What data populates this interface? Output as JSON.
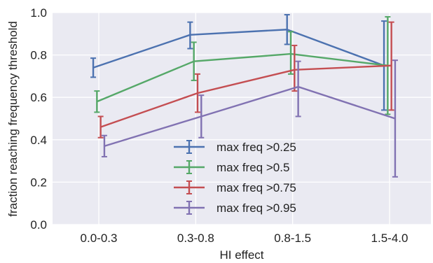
{
  "chart_data": {
    "type": "line",
    "title": "",
    "xlabel": "HI effect",
    "ylabel": "fraction reaching frequency threshold",
    "categories": [
      "0.0-0.3",
      "0.3-0.8",
      "0.8-1.5",
      "1.5-4.0"
    ],
    "ylim": [
      0.0,
      1.0
    ],
    "yticks": [
      "0.0",
      "0.2",
      "0.4",
      "0.6",
      "0.8",
      "1.0"
    ],
    "grid": true,
    "legend_position": "lower-center",
    "series": [
      {
        "name": "max freq >0.25",
        "color": "#4c72b0",
        "values": [
          0.74,
          0.895,
          0.92,
          0.75
        ],
        "err_low": [
          0.695,
          0.83,
          0.85,
          0.54
        ],
        "err_high": [
          0.785,
          0.955,
          0.99,
          0.96
        ]
      },
      {
        "name": "max freq >0.5",
        "color": "#55a868",
        "values": [
          0.58,
          0.77,
          0.805,
          0.75
        ],
        "err_low": [
          0.53,
          0.68,
          0.71,
          0.52
        ],
        "err_high": [
          0.63,
          0.86,
          0.91,
          0.98
        ]
      },
      {
        "name": "max freq >0.75",
        "color": "#c44e52",
        "values": [
          0.46,
          0.62,
          0.73,
          0.75
        ],
        "err_low": [
          0.41,
          0.53,
          0.63,
          0.54
        ],
        "err_high": [
          0.51,
          0.71,
          0.845,
          0.955
        ]
      },
      {
        "name": "max freq >0.95",
        "color": "#8172b2",
        "values": [
          0.37,
          0.51,
          0.65,
          0.5
        ],
        "err_low": [
          0.32,
          0.41,
          0.51,
          0.225
        ],
        "err_high": [
          0.42,
          0.61,
          0.77,
          0.775
        ]
      }
    ]
  }
}
